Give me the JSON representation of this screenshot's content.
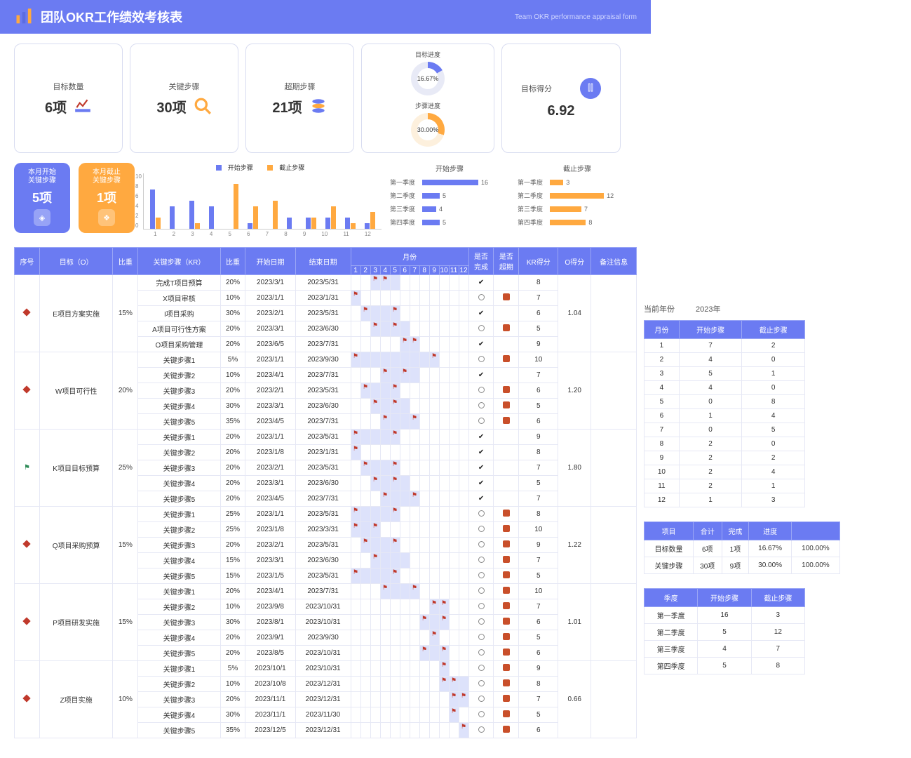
{
  "header": {
    "title": "团队OKR工作绩效考核表",
    "subtitle": "Team OKR performance appraisal form"
  },
  "kpi": {
    "objectives": {
      "label": "目标数量",
      "value": "6项"
    },
    "steps": {
      "label": "关键步骤",
      "value": "30项"
    },
    "overdue": {
      "label": "超期步骤",
      "value": "21项"
    },
    "progress_obj": {
      "label": "目标进度",
      "pct": "16.67%",
      "deg": 60
    },
    "progress_step": {
      "label": "步骤进度",
      "pct": "30.00%",
      "deg": 108
    },
    "score": {
      "label": "目标得分",
      "value": "6.92"
    }
  },
  "mini": {
    "start": {
      "title": "本月开始\n关键步骤",
      "value": "5项"
    },
    "end": {
      "title": "本月截止\n关键步骤",
      "value": "1项"
    }
  },
  "bar_chart": {
    "legend": {
      "a": "开始步骤",
      "b": "截止步骤"
    },
    "colors": {
      "a": "#6b7bf2",
      "b": "#ffa940"
    },
    "ylim": 10,
    "y_ticks": [
      0,
      2,
      4,
      6,
      8,
      10
    ],
    "months": [
      1,
      2,
      3,
      4,
      5,
      6,
      7,
      8,
      9,
      10,
      11,
      12
    ],
    "series_a": [
      7,
      4,
      5,
      4,
      0,
      1,
      0,
      2,
      2,
      2,
      2,
      1
    ],
    "series_b": [
      2,
      0,
      1,
      0,
      8,
      4,
      5,
      0,
      2,
      4,
      1,
      3
    ]
  },
  "hbar_start": {
    "title": "开始步骤",
    "color": "#6b7bf2",
    "max": 18,
    "rows": [
      {
        "label": "第一季度",
        "value": 16
      },
      {
        "label": "第二季度",
        "value": 5
      },
      {
        "label": "第三季度",
        "value": 4
      },
      {
        "label": "第四季度",
        "value": 5
      }
    ]
  },
  "hbar_end": {
    "title": "截止步骤",
    "color": "#ffa940",
    "max": 14,
    "rows": [
      {
        "label": "第一季度",
        "value": 3
      },
      {
        "label": "第二季度",
        "value": 12
      },
      {
        "label": "第三季度",
        "value": 7
      },
      {
        "label": "第四季度",
        "value": 8
      }
    ]
  },
  "year_label": "当前年份",
  "year_value": "2023年",
  "main_header": {
    "seq": "序号",
    "obj": "目标（O）",
    "obj_weight": "比重",
    "kr": "关键步骤（KR）",
    "kr_weight": "比重",
    "start": "开始日期",
    "end": "结束日期",
    "months": "月份",
    "done": "是否\n完成",
    "overdue": "是否\n超期",
    "kr_score": "KR得分",
    "o_score": "O得分",
    "notes": "备注信息"
  },
  "objectives": [
    {
      "marker": "diamond",
      "name": "E项目方案实施",
      "weight": "15%",
      "o_score": "1.04",
      "krs": [
        {
          "name": "完成T项目预算",
          "weight": "20%",
          "start": "2023/3/1",
          "end": "2023/5/31",
          "span": [
            3,
            5
          ],
          "flags": [
            3,
            4
          ],
          "done": true,
          "overdue": "",
          "score": 8
        },
        {
          "name": "X项目审核",
          "weight": "10%",
          "start": "2023/1/1",
          "end": "2023/1/31",
          "span": [
            1,
            1
          ],
          "flags": [
            1
          ],
          "done": "circle",
          "overdue": true,
          "score": 7
        },
        {
          "name": "I项目采购",
          "weight": "30%",
          "start": "2023/2/1",
          "end": "2023/5/31",
          "span": [
            2,
            5
          ],
          "flags": [
            2,
            5
          ],
          "done": true,
          "overdue": "",
          "score": 6
        },
        {
          "name": "A项目可行性方案",
          "weight": "20%",
          "start": "2023/3/1",
          "end": "2023/6/30",
          "span": [
            3,
            6
          ],
          "flags": [
            3,
            5
          ],
          "done": "circle",
          "overdue": true,
          "score": 5
        },
        {
          "name": "O项目采购管理",
          "weight": "20%",
          "start": "2023/6/5",
          "end": "2023/7/31",
          "span": [
            6,
            7
          ],
          "flags": [
            6,
            7
          ],
          "done": true,
          "overdue": "",
          "score": 9
        }
      ]
    },
    {
      "marker": "diamond",
      "name": "W项目可行性",
      "weight": "20%",
      "o_score": "1.20",
      "krs": [
        {
          "name": "关键步骤1",
          "weight": "5%",
          "start": "2023/1/1",
          "end": "2023/9/30",
          "span": [
            1,
            9
          ],
          "flags": [
            1,
            9
          ],
          "done": "circle",
          "overdue": true,
          "score": 10
        },
        {
          "name": "关键步骤2",
          "weight": "10%",
          "start": "2023/4/1",
          "end": "2023/7/31",
          "span": [
            4,
            7
          ],
          "flags": [
            4,
            6
          ],
          "done": true,
          "overdue": "",
          "score": 7
        },
        {
          "name": "关键步骤3",
          "weight": "20%",
          "start": "2023/2/1",
          "end": "2023/5/31",
          "span": [
            2,
            5
          ],
          "flags": [
            2,
            5
          ],
          "done": "circle",
          "overdue": true,
          "score": 6
        },
        {
          "name": "关键步骤4",
          "weight": "30%",
          "start": "2023/3/1",
          "end": "2023/6/30",
          "span": [
            3,
            6
          ],
          "flags": [
            3,
            5
          ],
          "done": "circle",
          "overdue": true,
          "score": 5
        },
        {
          "name": "关键步骤5",
          "weight": "35%",
          "start": "2023/4/5",
          "end": "2023/7/31",
          "span": [
            4,
            7
          ],
          "flags": [
            4,
            7
          ],
          "done": "circle",
          "overdue": true,
          "score": 6
        }
      ]
    },
    {
      "marker": "greenflag",
      "name": "K项目目标预算",
      "weight": "25%",
      "o_score": "1.80",
      "krs": [
        {
          "name": "关键步骤1",
          "weight": "20%",
          "start": "2023/1/1",
          "end": "2023/5/31",
          "span": [
            1,
            5
          ],
          "flags": [
            1,
            5
          ],
          "done": true,
          "overdue": "",
          "score": 9
        },
        {
          "name": "关键步骤2",
          "weight": "20%",
          "start": "2023/1/8",
          "end": "2023/1/31",
          "span": [
            1,
            1
          ],
          "flags": [
            1
          ],
          "done": true,
          "overdue": "",
          "score": 8
        },
        {
          "name": "关键步骤3",
          "weight": "20%",
          "start": "2023/2/1",
          "end": "2023/5/31",
          "span": [
            2,
            5
          ],
          "flags": [
            2,
            5
          ],
          "done": true,
          "overdue": "",
          "score": 7
        },
        {
          "name": "关键步骤4",
          "weight": "20%",
          "start": "2023/3/1",
          "end": "2023/6/30",
          "span": [
            3,
            6
          ],
          "flags": [
            3,
            5
          ],
          "done": true,
          "overdue": "",
          "score": 5
        },
        {
          "name": "关键步骤5",
          "weight": "20%",
          "start": "2023/4/5",
          "end": "2023/7/31",
          "span": [
            4,
            7
          ],
          "flags": [
            4,
            7
          ],
          "done": true,
          "overdue": "",
          "score": 7
        }
      ]
    },
    {
      "marker": "diamond",
      "name": "Q项目采购预算",
      "weight": "15%",
      "o_score": "1.22",
      "krs": [
        {
          "name": "关键步骤1",
          "weight": "25%",
          "start": "2023/1/1",
          "end": "2023/5/31",
          "span": [
            1,
            5
          ],
          "flags": [
            1,
            5
          ],
          "done": "circle",
          "overdue": true,
          "score": 8
        },
        {
          "name": "关键步骤2",
          "weight": "25%",
          "start": "2023/1/8",
          "end": "2023/3/31",
          "span": [
            1,
            3
          ],
          "flags": [
            1,
            3
          ],
          "done": "circle",
          "overdue": true,
          "score": 10
        },
        {
          "name": "关键步骤3",
          "weight": "20%",
          "start": "2023/2/1",
          "end": "2023/5/31",
          "span": [
            2,
            5
          ],
          "flags": [
            2,
            5
          ],
          "done": "circle",
          "overdue": true,
          "score": 9
        },
        {
          "name": "关键步骤4",
          "weight": "15%",
          "start": "2023/3/1",
          "end": "2023/6/30",
          "span": [
            3,
            6
          ],
          "flags": [
            3
          ],
          "done": "circle",
          "overdue": true,
          "score": 7
        },
        {
          "name": "关键步骤5",
          "weight": "15%",
          "start": "2023/1/5",
          "end": "2023/5/31",
          "span": [
            1,
            5
          ],
          "flags": [
            1,
            5
          ],
          "done": "circle",
          "overdue": true,
          "score": 5
        }
      ]
    },
    {
      "marker": "diamond",
      "name": "P项目研发实施",
      "weight": "15%",
      "o_score": "1.01",
      "krs": [
        {
          "name": "关键步骤1",
          "weight": "20%",
          "start": "2023/4/1",
          "end": "2023/7/31",
          "span": [
            4,
            7
          ],
          "flags": [
            4,
            7
          ],
          "done": "circle",
          "overdue": true,
          "score": 10
        },
        {
          "name": "关键步骤2",
          "weight": "10%",
          "start": "2023/9/8",
          "end": "2023/10/31",
          "span": [
            9,
            10
          ],
          "flags": [
            9,
            10
          ],
          "done": "circle",
          "overdue": true,
          "score": 7
        },
        {
          "name": "关键步骤3",
          "weight": "30%",
          "start": "2023/8/1",
          "end": "2023/10/31",
          "span": [
            8,
            10
          ],
          "flags": [
            8,
            10
          ],
          "done": "circle",
          "overdue": true,
          "score": 6
        },
        {
          "name": "关键步骤4",
          "weight": "20%",
          "start": "2023/9/1",
          "end": "2023/9/30",
          "span": [
            9,
            9
          ],
          "flags": [
            9
          ],
          "done": "circle",
          "overdue": true,
          "score": 5
        },
        {
          "name": "关键步骤5",
          "weight": "20%",
          "start": "2023/8/5",
          "end": "2023/10/31",
          "span": [
            8,
            10
          ],
          "flags": [
            8,
            10
          ],
          "done": "circle",
          "overdue": true,
          "score": 6
        }
      ]
    },
    {
      "marker": "diamond",
      "name": "Z项目实施",
      "weight": "10%",
      "o_score": "0.66",
      "krs": [
        {
          "name": "关键步骤1",
          "weight": "5%",
          "start": "2023/10/1",
          "end": "2023/10/31",
          "span": [
            10,
            10
          ],
          "flags": [
            10
          ],
          "done": "circle",
          "overdue": true,
          "score": 9
        },
        {
          "name": "关键步骤2",
          "weight": "10%",
          "start": "2023/10/8",
          "end": "2023/12/31",
          "span": [
            10,
            12
          ],
          "flags": [
            10,
            11
          ],
          "done": "circle",
          "overdue": true,
          "score": 8
        },
        {
          "name": "关键步骤3",
          "weight": "20%",
          "start": "2023/11/1",
          "end": "2023/12/31",
          "span": [
            11,
            12
          ],
          "flags": [
            11,
            12
          ],
          "done": "circle",
          "overdue": true,
          "score": 7
        },
        {
          "name": "关键步骤4",
          "weight": "30%",
          "start": "2023/11/1",
          "end": "2023/11/30",
          "span": [
            11,
            11
          ],
          "flags": [
            11
          ],
          "done": "circle",
          "overdue": true,
          "score": 5
        },
        {
          "name": "关键步骤5",
          "weight": "35%",
          "start": "2023/12/5",
          "end": "2023/12/31",
          "span": [
            12,
            12
          ],
          "flags": [
            12
          ],
          "done": "circle",
          "overdue": true,
          "score": 6
        }
      ]
    }
  ],
  "side_month": {
    "headers": [
      "月份",
      "开始步骤",
      "截止步骤"
    ],
    "rows": [
      [
        1,
        7,
        2
      ],
      [
        2,
        4,
        0
      ],
      [
        3,
        5,
        1
      ],
      [
        4,
        4,
        0
      ],
      [
        5,
        0,
        8
      ],
      [
        6,
        1,
        4
      ],
      [
        7,
        0,
        5
      ],
      [
        8,
        2,
        0
      ],
      [
        9,
        2,
        2
      ],
      [
        10,
        2,
        4
      ],
      [
        11,
        2,
        1
      ],
      [
        12,
        1,
        3
      ]
    ]
  },
  "side_summary": {
    "headers": [
      "项目",
      "合计",
      "完成",
      "进度",
      ""
    ],
    "rows": [
      [
        "目标数量",
        "6项",
        "1项",
        "16.67%",
        "100.00%"
      ],
      [
        "关键步骤",
        "30项",
        "9项",
        "30.00%",
        "100.00%"
      ]
    ]
  },
  "side_quarter": {
    "headers": [
      "季度",
      "开始步骤",
      "截止步骤"
    ],
    "rows": [
      [
        "第一季度",
        16,
        3
      ],
      [
        "第二季度",
        5,
        12
      ],
      [
        "第三季度",
        4,
        7
      ],
      [
        "第四季度",
        5,
        8
      ]
    ]
  }
}
